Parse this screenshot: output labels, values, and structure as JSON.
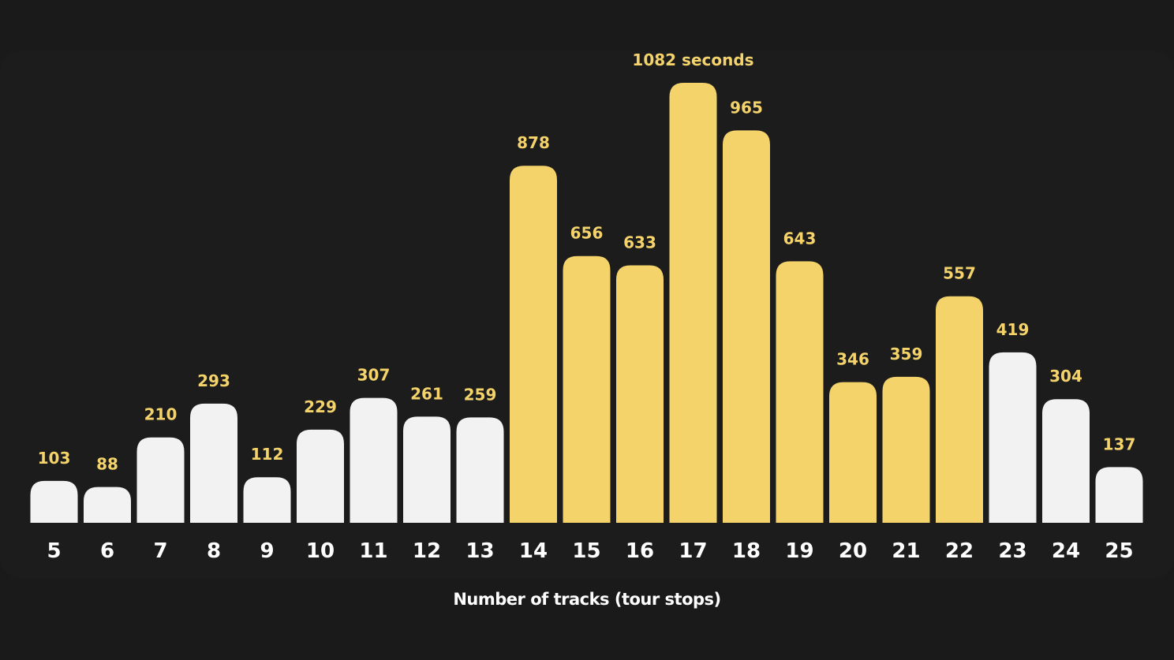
{
  "chart_data": {
    "type": "bar",
    "categories": [
      "5",
      "6",
      "7",
      "8",
      "9",
      "10",
      "11",
      "12",
      "13",
      "14",
      "15",
      "16",
      "17",
      "18",
      "19",
      "20",
      "21",
      "22",
      "23",
      "24",
      "25"
    ],
    "values": [
      103,
      88,
      210,
      293,
      112,
      229,
      307,
      261,
      259,
      878,
      656,
      633,
      1082,
      965,
      643,
      346,
      359,
      557,
      419,
      304,
      137
    ],
    "value_labels": [
      "103",
      "88",
      "210",
      "293",
      "112",
      "229",
      "307",
      "261",
      "259",
      "878",
      "656",
      "633",
      "1082 seconds",
      "965",
      "643",
      "346",
      "359",
      "557",
      "419",
      "304",
      "137"
    ],
    "highlighted": [
      false,
      false,
      false,
      false,
      false,
      false,
      false,
      false,
      false,
      true,
      true,
      true,
      true,
      true,
      true,
      true,
      true,
      true,
      false,
      false,
      false
    ],
    "xlabel": "Number of tracks (tour stops)",
    "ylabel": "",
    "ylim": [
      0,
      1082
    ],
    "grid": false,
    "legend": "none"
  },
  "colors": {
    "background": "#1a1a1a",
    "bar_default": "#f2f2f2",
    "bar_highlight": "#f5d36b",
    "label": "#f5d36b",
    "tick": "#ffffff"
  }
}
